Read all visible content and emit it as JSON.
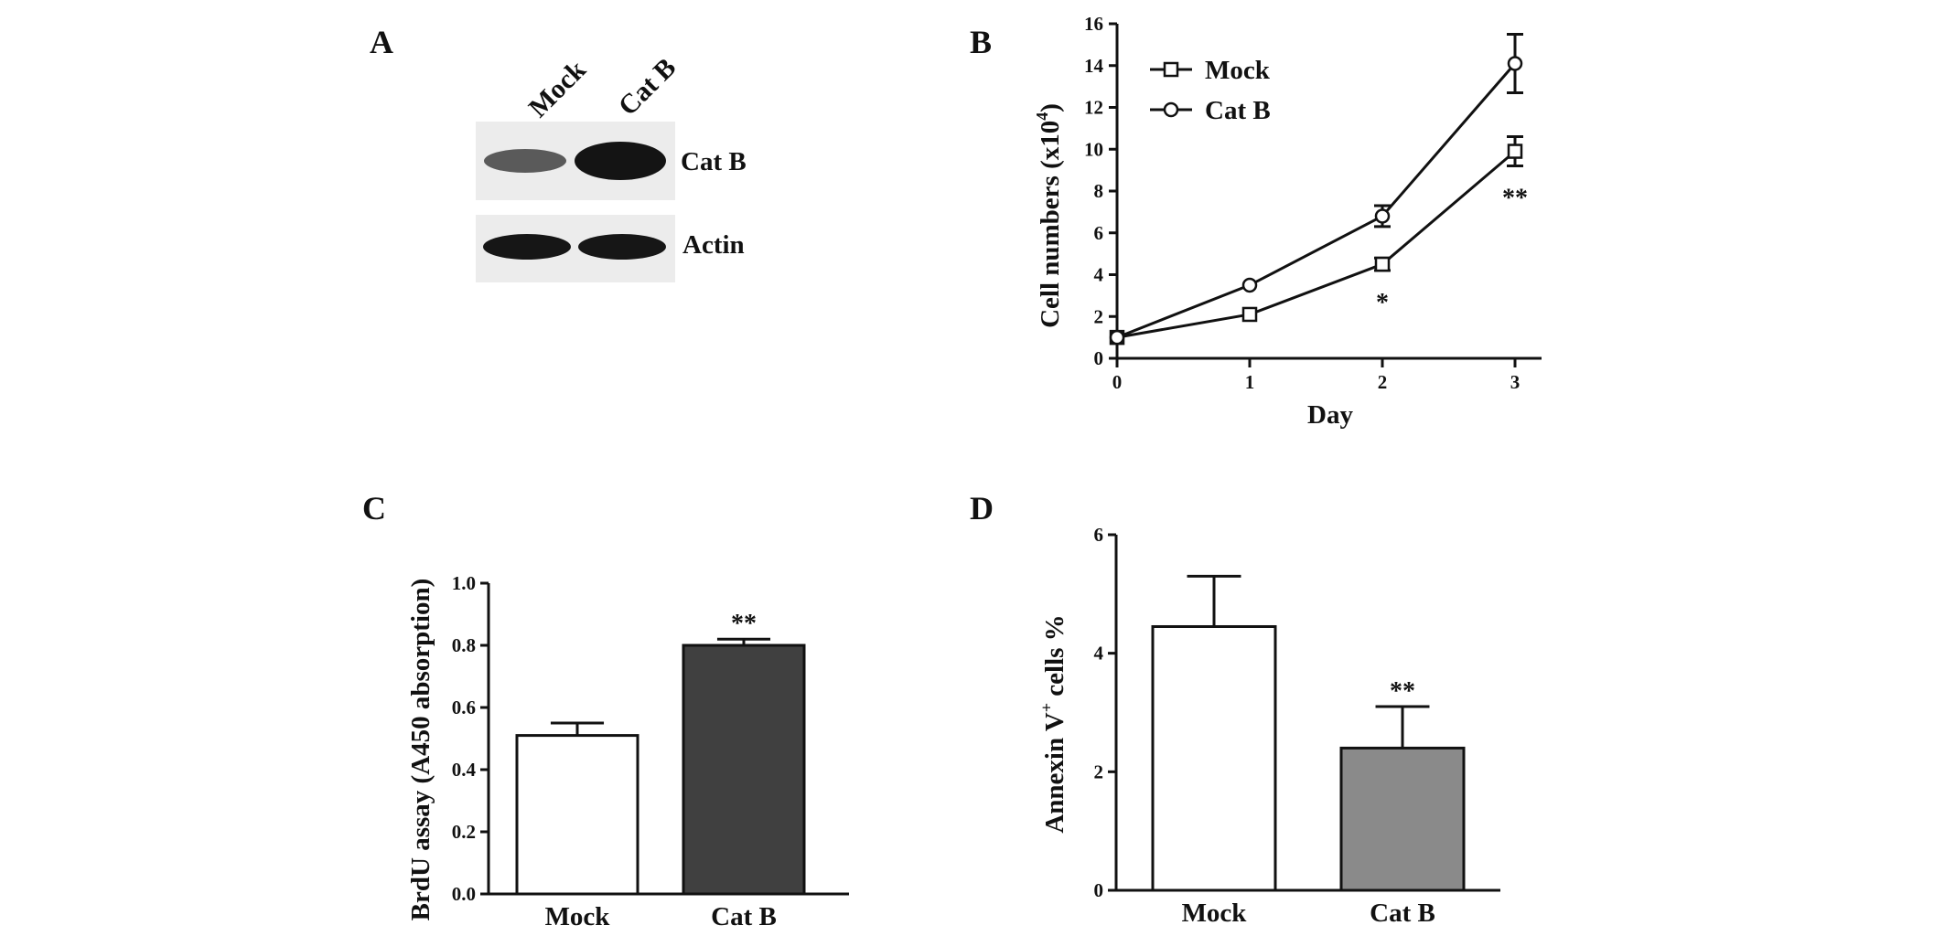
{
  "panels": {
    "A": "A",
    "B": "B",
    "C": "C",
    "D": "D"
  },
  "colors": {
    "axis": "#111111",
    "mock_bar_c": "#ffffff",
    "catb_bar_c": "#404040",
    "mock_bar_d": "#ffffff",
    "catb_bar_d": "#8a8a8a",
    "blot_bg": "#ececec",
    "band": "#1a1a1a"
  },
  "blot": {
    "lanes": [
      "Mock",
      "Cat B"
    ],
    "rows": [
      {
        "label": "Cat B",
        "band_intensity": [
          0.45,
          1.0
        ]
      },
      {
        "label": "Actin",
        "band_intensity": [
          1.0,
          1.0
        ]
      }
    ]
  },
  "chart_data": [
    {
      "panel": "B",
      "type": "line",
      "xlabel": "Day",
      "ylabel": "Cell numbers (x10",
      "ylabel_sup": "4",
      "ylabel_end": ")",
      "x": [
        0,
        1,
        2,
        3
      ],
      "xlim": [
        0,
        3.3
      ],
      "ylim": [
        0,
        16
      ],
      "xticks": [
        0,
        1,
        2,
        3
      ],
      "yticks": [
        0,
        2,
        4,
        6,
        8,
        10,
        12,
        14,
        16
      ],
      "legend_position": "top-left",
      "series": [
        {
          "name": "Mock",
          "marker": "square",
          "values": [
            1.0,
            2.1,
            4.5,
            9.9
          ],
          "errors": [
            0,
            0,
            0.3,
            0.7
          ],
          "sig": [
            "",
            "",
            "*",
            "**"
          ]
        },
        {
          "name": "Cat B",
          "marker": "circle",
          "values": [
            1.0,
            3.5,
            6.8,
            14.1
          ],
          "errors": [
            0,
            0,
            0.5,
            1.4
          ],
          "sig": [
            "",
            "",
            "",
            ""
          ]
        }
      ]
    },
    {
      "panel": "C",
      "type": "bar",
      "ylabel": "BrdU assay (A450 absorption)",
      "categories": [
        "Mock",
        "Cat B"
      ],
      "values": [
        0.51,
        0.8
      ],
      "errors": [
        0.04,
        0.02
      ],
      "sig": [
        "",
        "**"
      ],
      "ylim": [
        0,
        1.0
      ],
      "yticks": [
        "0.0",
        "0.2",
        "0.4",
        "0.6",
        "0.8",
        "1.0"
      ]
    },
    {
      "panel": "D",
      "type": "bar",
      "ylabel": "Annexin V",
      "ylabel_sup": "+",
      "ylabel_end": " cells %",
      "categories": [
        "Mock",
        "Cat B"
      ],
      "values": [
        4.45,
        2.4
      ],
      "errors": [
        0.85,
        0.7
      ],
      "sig": [
        "",
        "**"
      ],
      "ylim": [
        0,
        6
      ],
      "yticks": [
        "0",
        "2",
        "4",
        "6"
      ]
    }
  ]
}
